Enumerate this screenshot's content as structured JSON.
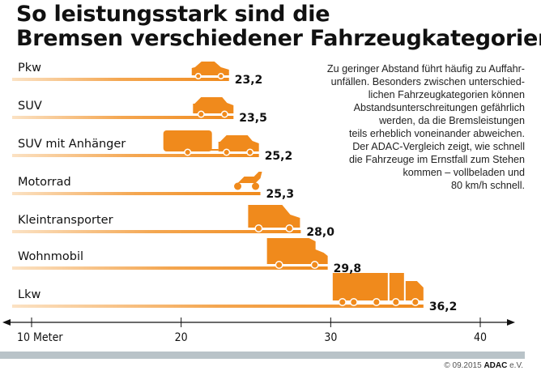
{
  "chart_data": {
    "type": "bar",
    "orientation": "horizontal",
    "title": [
      "So leistungsstark sind die",
      "Bremsen verschiedener Fahrzeugkategorien"
    ],
    "categories": [
      "Pkw",
      "SUV",
      "SUV mit Anhänger",
      "Motorrad",
      "Kleintransporter",
      "Wohnmobil",
      "Lkw"
    ],
    "values": [
      23.2,
      23.5,
      25.2,
      25.3,
      28.0,
      29.8,
      36.2
    ],
    "value_labels": [
      "23,2",
      "23,5",
      "25,2",
      "25,3",
      "28,0",
      "29,8",
      "36,2"
    ],
    "icons": [
      "car-icon",
      "suv-icon",
      "suv-trailer-icon",
      "motorcycle-icon",
      "van-icon",
      "motorhome-icon",
      "truck-icon"
    ],
    "xlim": [
      10,
      40
    ],
    "ticks": [
      10,
      20,
      30,
      40
    ],
    "tick_labels": [
      "10 Meter",
      "20",
      "30",
      "40"
    ],
    "bar_color": "#f08a1c",
    "grid": false
  },
  "description": [
    "Zu geringer Abstand führt häufig zu Auffahr-",
    "unfällen. Besonders zwischen unterschied-",
    "lichen Fahrzeugkategorien können",
    "Abstandsunterschreitungen gefährlich",
    "werden, da die Bremsleistungen",
    "teils erheblich voneinander abweichen.",
    "Der ADAC-Vergleich zeigt, wie schnell",
    "die Fahrzeuge im Ernstfall zum Stehen",
    "kommen – vollbeladen und",
    "80 km/h schnell."
  ],
  "footer": {
    "copyright": "© 09.2015",
    "brand": "ADAC",
    "suffix": " e.V."
  }
}
